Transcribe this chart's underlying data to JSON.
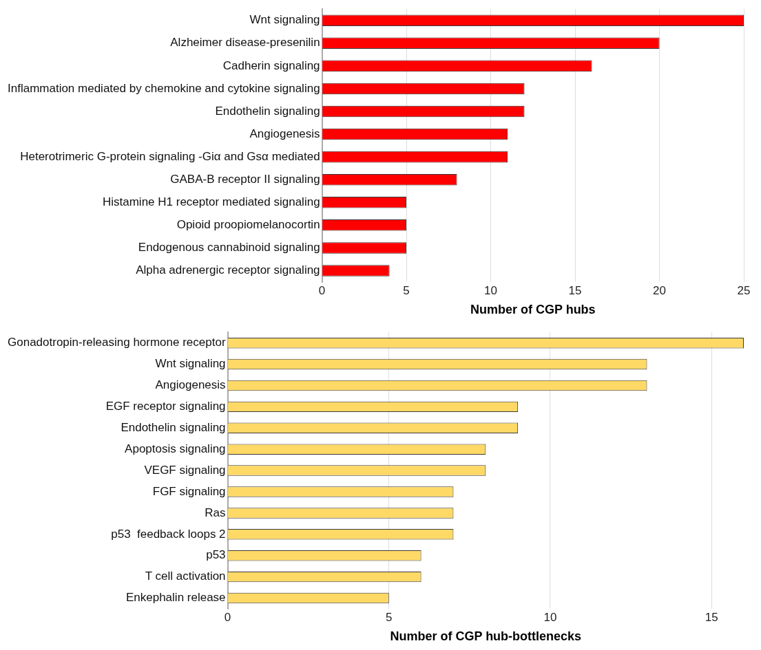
{
  "chart_data": [
    {
      "type": "bar",
      "orientation": "horizontal",
      "xlabel": "Number of CGP hubs",
      "categories": [
        "Wnt signaling",
        "Alzheimer disease-presenilin",
        "Cadherin signaling",
        "Inflammation mediated by chemokine and cytokine signaling",
        "Endothelin signaling",
        "Angiogenesis",
        "Heterotrimeric G-protein signaling -Giα and Gsα mediated",
        "GABA-B receptor II signaling",
        "Histamine H1 receptor mediated signaling",
        "Opioid proopiomelanocortin",
        "Endogenous cannabinoid signaling",
        "Alpha adrenergic receptor signaling"
      ],
      "values": [
        25,
        20,
        16,
        12,
        12,
        11,
        11,
        8,
        5,
        5,
        5,
        4
      ],
      "color": "#ff0000",
      "xlim": [
        0,
        25
      ],
      "xticks": [
        0,
        5,
        10,
        15,
        20,
        25
      ],
      "grid": "x",
      "legend": false
    },
    {
      "type": "bar",
      "orientation": "horizontal",
      "xlabel": "Number of CGP hub-bottlenecks",
      "categories": [
        "Gonadotropin-releasing hormone receptor",
        "Wnt signaling",
        "Angiogenesis",
        "EGF receptor signaling",
        "Endothelin signaling",
        "Apoptosis signaling",
        "VEGF signaling",
        "FGF signaling",
        "Ras",
        "p53  feedback loops 2",
        "p53",
        "T cell activation",
        "Enkephalin release"
      ],
      "values": [
        16,
        13,
        13,
        9,
        9,
        8,
        8,
        7,
        7,
        7,
        6,
        6,
        5
      ],
      "color": "#ffd966",
      "xlim": [
        0,
        16
      ],
      "xticks": [
        0,
        5,
        10,
        15
      ],
      "grid": "x",
      "legend": false
    }
  ]
}
